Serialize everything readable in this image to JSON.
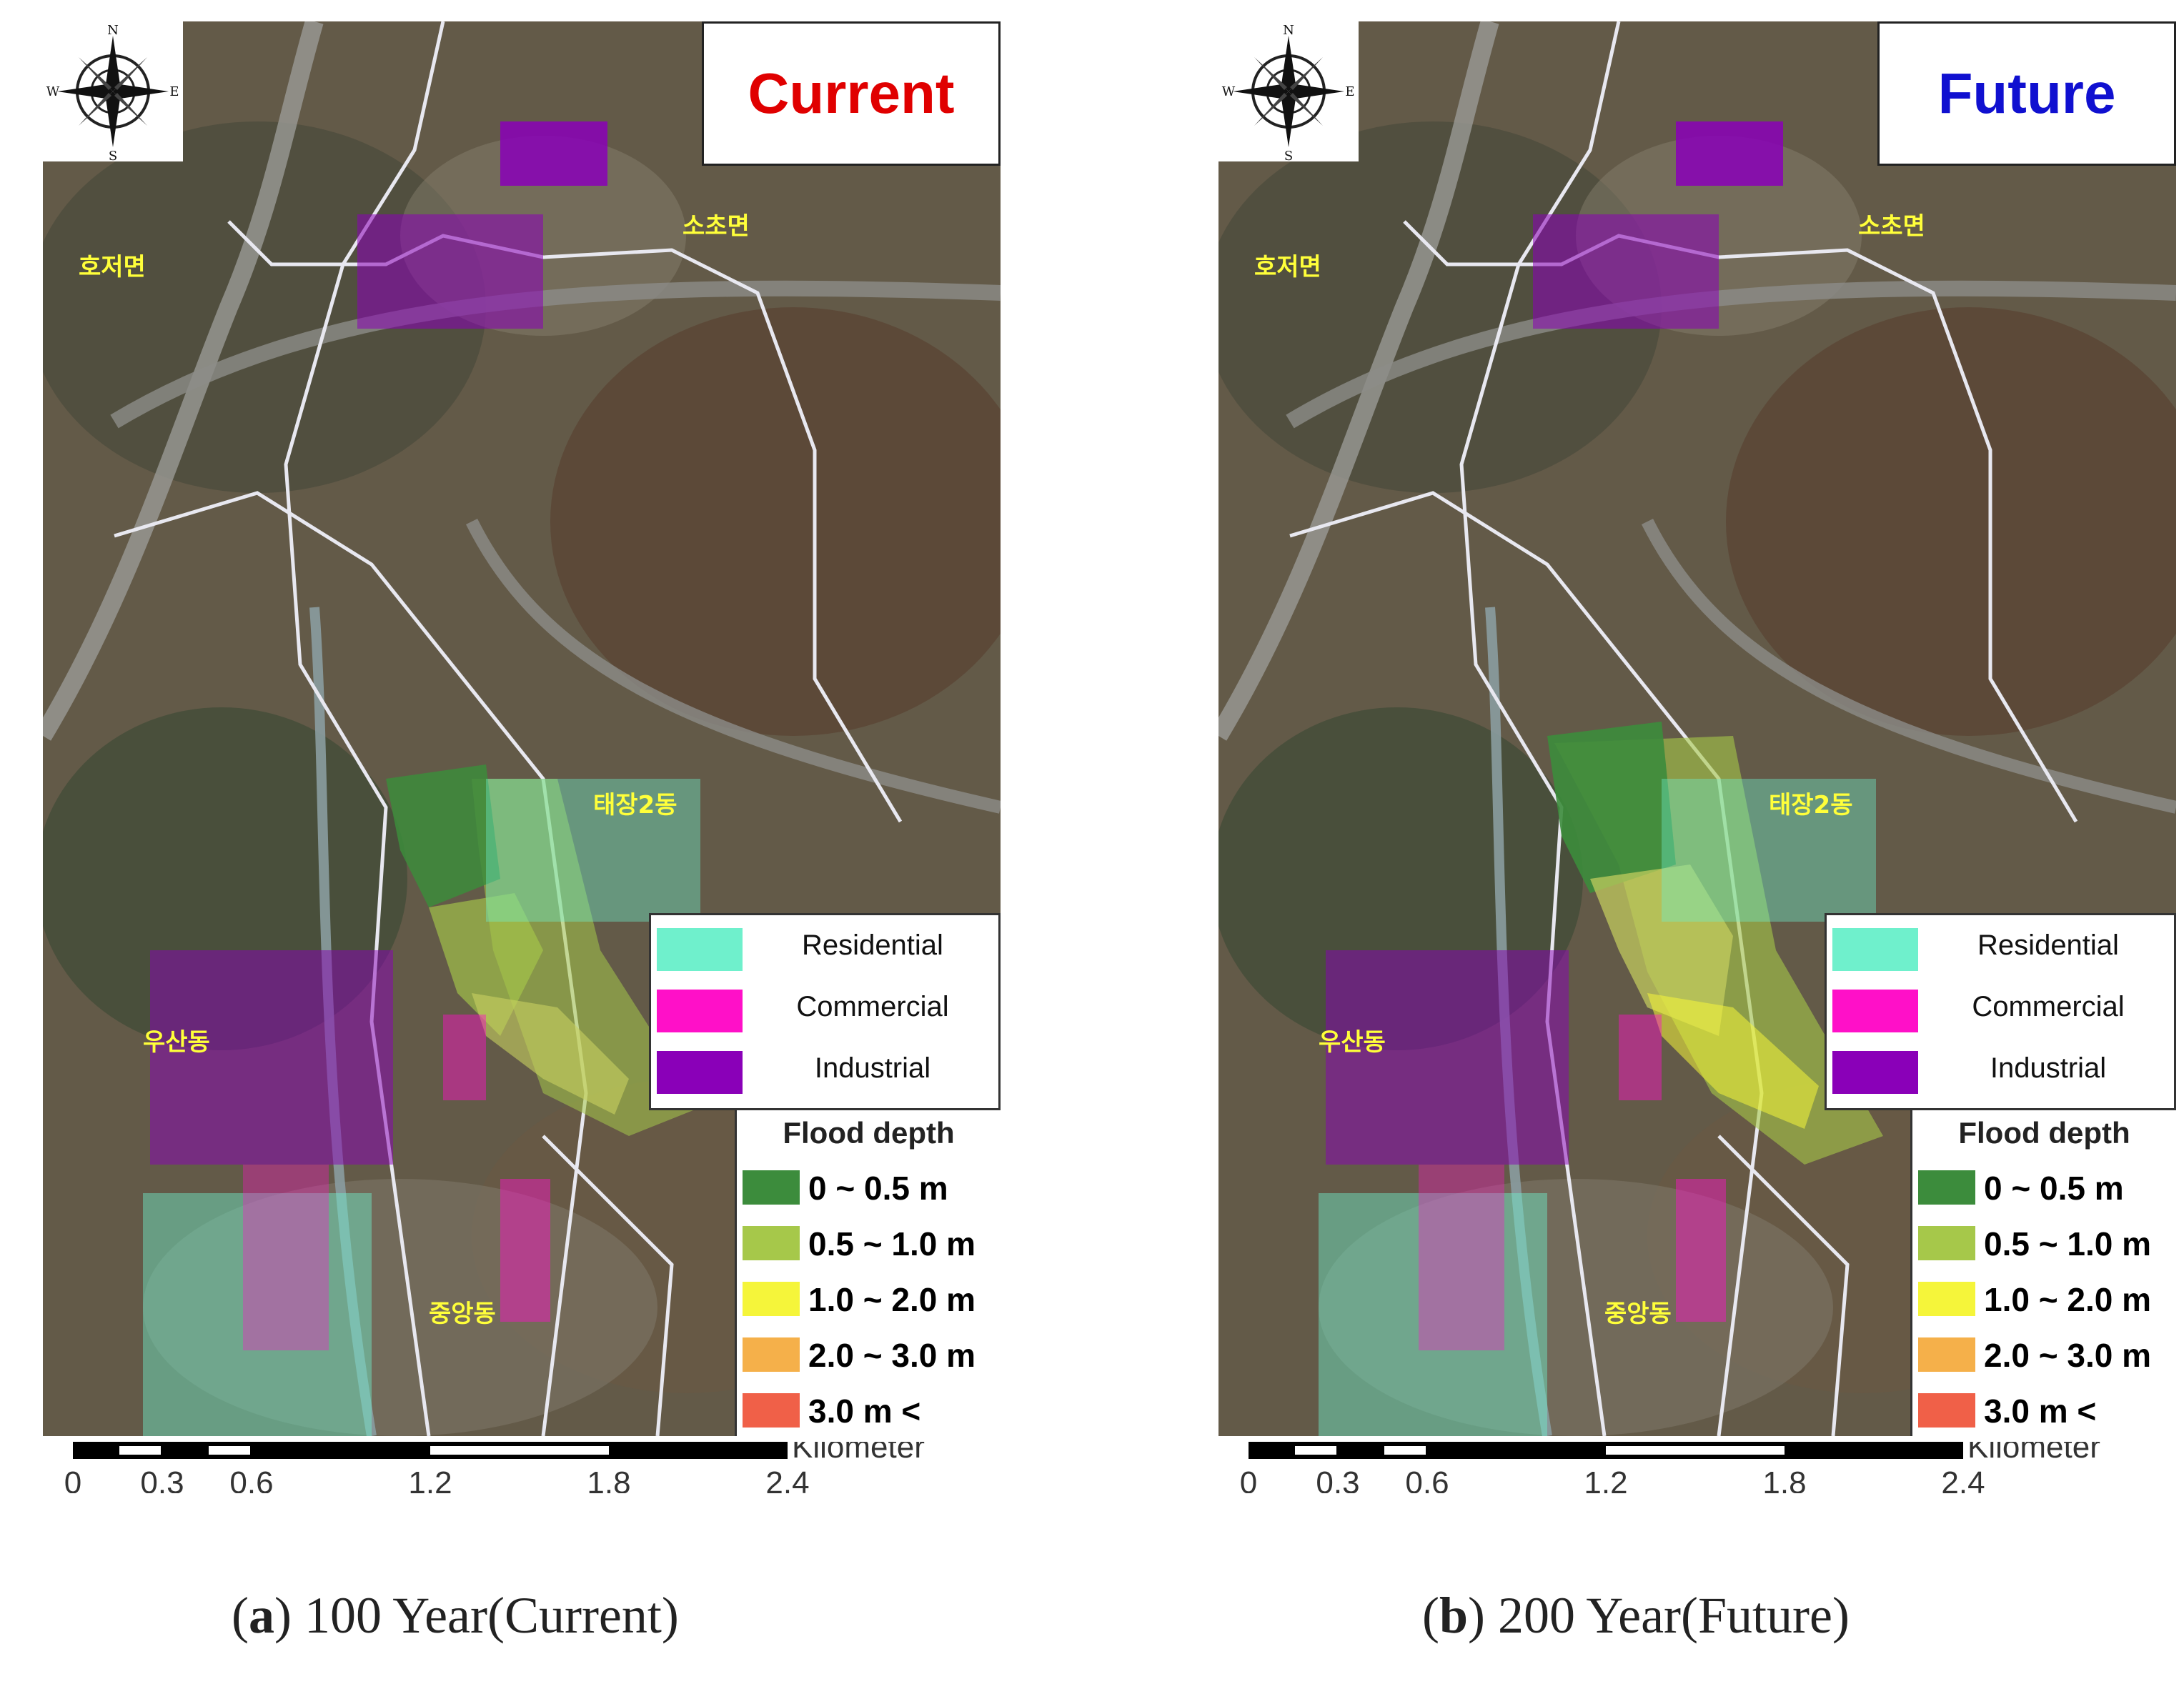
{
  "panels": [
    {
      "id": "a",
      "title": "Current",
      "title_color": "#e00000",
      "caption_letter": "a",
      "caption_text": "100 Year(Current)"
    },
    {
      "id": "b",
      "title": "Future",
      "title_color": "#1010d0",
      "caption_letter": "b",
      "caption_text": "200 Year(Future)"
    }
  ],
  "compass": {
    "n": "N",
    "s": "S",
    "e": "E",
    "w": "W"
  },
  "place_names": [
    "호저면",
    "소초면",
    "태장2동",
    "우산동",
    "중앙동"
  ],
  "land_use_legend": [
    {
      "label": "Residential",
      "color": "#6ff0cc"
    },
    {
      "label": "Commercial",
      "color": "#ff10c8"
    },
    {
      "label": "Industrial",
      "color": "#8a00b8"
    }
  ],
  "flood_depth_legend": {
    "title": "Flood depth",
    "classes": [
      {
        "label": "0 ~ 0.5 m",
        "color": "#3c8c3c"
      },
      {
        "label": "0.5 ~ 1.0 m",
        "color": "#a6c84a"
      },
      {
        "label": "1.0 ~ 2.0 m",
        "color": "#f5f53a"
      },
      {
        "label": "2.0 ~ 3.0 m",
        "color": "#f5b04a"
      },
      {
        "label": "3.0 m   <",
        "color": "#f06048"
      }
    ]
  },
  "scale_bar": {
    "unit": "Kilometer",
    "ticks": [
      "0",
      "0.3",
      "0.6",
      "1.2",
      "1.8",
      "2.4"
    ],
    "tick_values_km": [
      0,
      0.3,
      0.6,
      1.2,
      1.8,
      2.4
    ]
  }
}
